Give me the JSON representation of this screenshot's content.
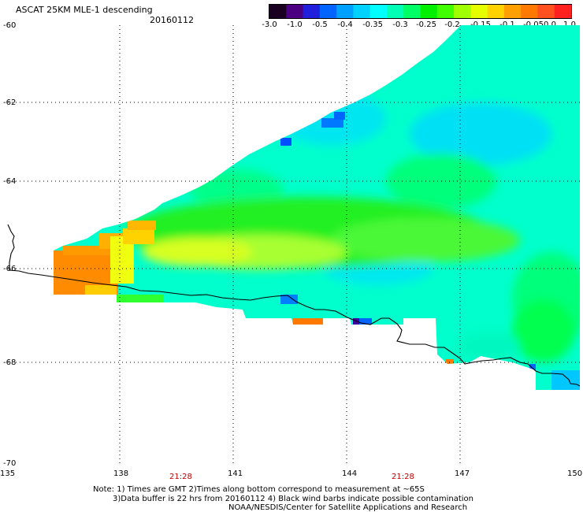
{
  "header": {
    "title": "ASCAT 25KM MLE-1 descending",
    "date": "20160112"
  },
  "colorbar": {
    "colors": [
      "#1a0020",
      "#4b0082",
      "#1f1fdc",
      "#0064ff",
      "#00a0ff",
      "#00d2ff",
      "#00ffff",
      "#00ffb4",
      "#00ff64",
      "#00f000",
      "#40ff00",
      "#a0ff00",
      "#e6ff00",
      "#ffd200",
      "#ffa000",
      "#ff7800",
      "#ff5020",
      "#ff2020"
    ],
    "labels": [
      "-3.0",
      "-1.0",
      "-0.5",
      "-0.4",
      "-0.35",
      "-0.3",
      "-0.25",
      "-0.2",
      "-0.15",
      "-0.1",
      "-0.05",
      "0.0",
      "1.0"
    ]
  },
  "axes": {
    "lat_labels": [
      "-60",
      "-62",
      "-64",
      "-66",
      "-68",
      "-70"
    ],
    "lon_labels": [
      "135",
      "138",
      "141",
      "144",
      "147",
      "150"
    ],
    "times": [
      "21:28",
      "21:28"
    ]
  },
  "notes": {
    "line1": "Note: 1) Times are GMT 2)Times along bottom correspond to measurement at ~65S",
    "line2": "3)Data buffer is 22 hrs from 20160112 4) Black wind barbs indicate possible contamination",
    "line3": "NOAA/NESDIS/Center for Satellite Applications and Research"
  }
}
